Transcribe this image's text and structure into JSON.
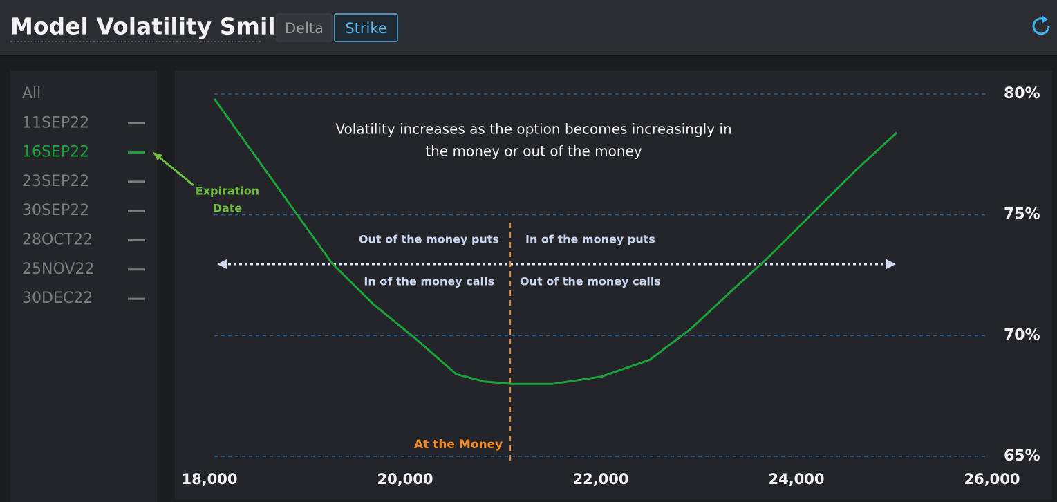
{
  "header": {
    "title": "Model Volatility Smile",
    "tabs": [
      {
        "label": "Delta",
        "active": false
      },
      {
        "label": "Strike",
        "active": true
      }
    ]
  },
  "sidebar": {
    "items": [
      "All",
      "11SEP22",
      "16SEP22",
      "23SEP22",
      "30SEP22",
      "28OCT22",
      "25NOV22",
      "30DEC22"
    ],
    "selected": 2,
    "selected_color": "#1aa33a"
  },
  "callout": {
    "lines": [
      "Expiration",
      "Date"
    ]
  },
  "chart_data": {
    "type": "line",
    "x": [
      18050,
      18686,
      19251,
      19675,
      20099,
      20523,
      20806,
      21088,
      21512,
      22007,
      22502,
      22926,
      23350,
      23703,
      24198,
      24622,
      25025
    ],
    "series": [
      {
        "color": "#1aa33a",
        "values": [
          79.8,
          76.2,
          73.0,
          71.3,
          69.9,
          68.4,
          68.1,
          68.0,
          68.0,
          68.3,
          69.0,
          70.3,
          71.9,
          73.2,
          75.2,
          76.9,
          78.4
        ]
      }
    ],
    "xlim": [
      18000,
      26000
    ],
    "xticks": [
      {
        "value": 18000,
        "label": "18,000"
      },
      {
        "value": 20000,
        "label": "20,000"
      },
      {
        "value": 22000,
        "label": "22,000"
      },
      {
        "value": 24000,
        "label": "24,000"
      },
      {
        "value": 26000,
        "label": "26,000"
      }
    ],
    "ylim": [
      65,
      80
    ],
    "yticks": [
      {
        "value": 65,
        "label": "65%"
      },
      {
        "value": 70,
        "label": "70%"
      },
      {
        "value": 75,
        "label": "75%"
      },
      {
        "value": 80,
        "label": "80%"
      }
    ],
    "grid": true,
    "note": [
      "Volatility increases as the option becomes increasingly in",
      "the money or out of the money"
    ],
    "regions": {
      "upper_left": "Out of the money puts",
      "upper_right": "In of the money puts",
      "lower_left": "In of the money calls",
      "lower_right": "Out of the money calls"
    },
    "atm": {
      "label": "At the Money",
      "x": 21075
    }
  }
}
